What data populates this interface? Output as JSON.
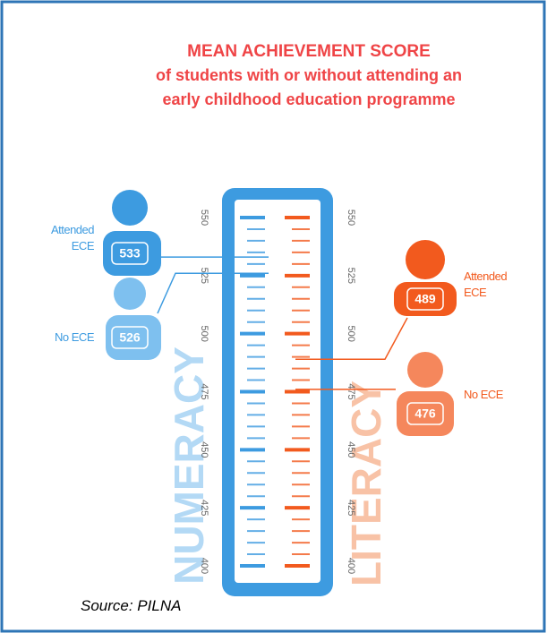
{
  "chart_data": {
    "type": "ruler",
    "title": [
      "MEAN ACHIEVEMENT SCORE",
      "of students with or without attending an",
      "early childhood education  programme"
    ],
    "categories": [
      "Attended ECE",
      "No ECE"
    ],
    "series": [
      {
        "name": "NUMERACY",
        "color": "#3d9be0",
        "values": [
          533,
          526
        ]
      },
      {
        "name": "LITERACY",
        "color": "#f25a1e",
        "values": [
          489,
          476
        ]
      }
    ],
    "ylim": [
      400,
      550
    ],
    "yticks": [
      400,
      425,
      450,
      475,
      500,
      525,
      550
    ],
    "minor_yticks": [
      405,
      410,
      415,
      420,
      430,
      435,
      440,
      445,
      455,
      460,
      465,
      470,
      480,
      485,
      490,
      495,
      505,
      510,
      515,
      520,
      530,
      535,
      540,
      545
    ],
    "source": "Source: PILNA"
  }
}
